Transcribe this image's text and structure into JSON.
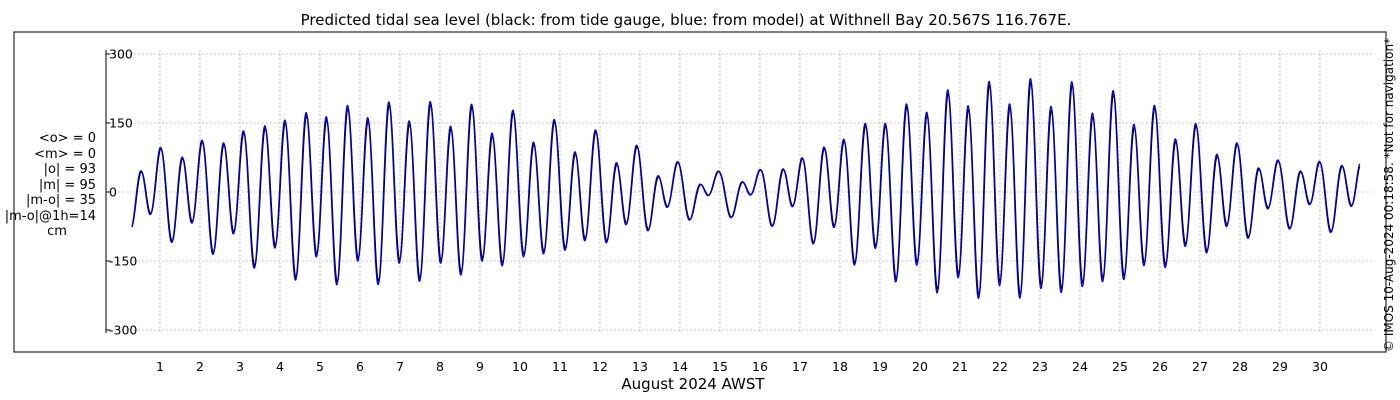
{
  "chart_data": {
    "type": "line",
    "title": "Predicted tidal sea level (black: from tide gauge, blue: from model) at Withnell Bay 20.567S 116.767E.",
    "xlabel": "August 2024 AWST",
    "ylabel": "",
    "xlim": [
      0,
      31
    ],
    "ylim": [
      -320,
      320
    ],
    "x_ticks": [
      1,
      2,
      3,
      4,
      5,
      6,
      7,
      8,
      9,
      10,
      11,
      12,
      13,
      14,
      15,
      16,
      17,
      18,
      19,
      20,
      21,
      22,
      23,
      24,
      25,
      26,
      27,
      28,
      29,
      30
    ],
    "x_tick_labels": [
      "1",
      "2",
      "3",
      "4",
      "5",
      "6",
      "7",
      "8",
      "9",
      "10",
      "11",
      "12",
      "13",
      "14",
      "15",
      "16",
      "17",
      "18",
      "19",
      "20",
      "21",
      "22",
      "23",
      "24",
      "25",
      "26",
      "27",
      "28",
      "29",
      "30"
    ],
    "y_ticks": [
      300,
      150,
      0,
      -150,
      -300
    ],
    "y_tick_labels": [
      "300",
      "150",
      "0",
      "-150",
      "-300"
    ],
    "grid": true,
    "series": [
      {
        "name": "from tide gauge",
        "color": "#000000",
        "model": {
          "m2_periods_per_day": 1.9323,
          "s2_periods_per_day": 2.0,
          "k1_periods_per_day": 1.0027,
          "amp_scale": 1.0,
          "phase_shift_days": 0.0
        }
      },
      {
        "name": "from model",
        "color": "#0000cc",
        "model": {
          "m2_periods_per_day": 1.9323,
          "s2_periods_per_day": 2.0,
          "k1_periods_per_day": 1.0027,
          "amp_scale": 1.04,
          "phase_shift_days": 0.012
        }
      }
    ],
    "semidiurnal_envelope": [
      {
        "day": 0.0,
        "amp": 50
      },
      {
        "day": 1.0,
        "amp": 75
      },
      {
        "day": 2.0,
        "amp": 95
      },
      {
        "day": 3.0,
        "amp": 120
      },
      {
        "day": 4.0,
        "amp": 150
      },
      {
        "day": 5.0,
        "amp": 165
      },
      {
        "day": 6.0,
        "amp": 170
      },
      {
        "day": 7.0,
        "amp": 170
      },
      {
        "day": 8.0,
        "amp": 165
      },
      {
        "day": 9.0,
        "amp": 155
      },
      {
        "day": 10.0,
        "amp": 140
      },
      {
        "day": 11.0,
        "amp": 120
      },
      {
        "day": 12.0,
        "amp": 100
      },
      {
        "day": 13.0,
        "amp": 70
      },
      {
        "day": 14.0,
        "amp": 40
      },
      {
        "day": 15.0,
        "amp": 25
      },
      {
        "day": 16.0,
        "amp": 35
      },
      {
        "day": 17.0,
        "amp": 65
      },
      {
        "day": 18.0,
        "amp": 110
      },
      {
        "day": 19.0,
        "amp": 150
      },
      {
        "day": 20.0,
        "amp": 180
      },
      {
        "day": 21.0,
        "amp": 200
      },
      {
        "day": 22.0,
        "amp": 210
      },
      {
        "day": 23.0,
        "amp": 210
      },
      {
        "day": 24.0,
        "amp": 200
      },
      {
        "day": 25.0,
        "amp": 180
      },
      {
        "day": 26.0,
        "amp": 150
      },
      {
        "day": 27.0,
        "amp": 115
      },
      {
        "day": 28.0,
        "amp": 80
      },
      {
        "day": 29.0,
        "amp": 50
      },
      {
        "day": 30.0,
        "amp": 55
      },
      {
        "day": 31.0,
        "amp": 60
      }
    ],
    "diurnal_amp": 30
  },
  "stats": {
    "mean_obs": "<o> = 0",
    "mean_model": "<m> = 0",
    "abs_obs": "|o| = 93",
    "abs_model": "|m| = 95",
    "abs_diff": "|m-o| = 35",
    "abs_diff_1h": "|m-o|@1h=14",
    "unit": "cm"
  },
  "credit": "© IMOS 10-Aug-2024 00:18:58. *Not for navigation*"
}
